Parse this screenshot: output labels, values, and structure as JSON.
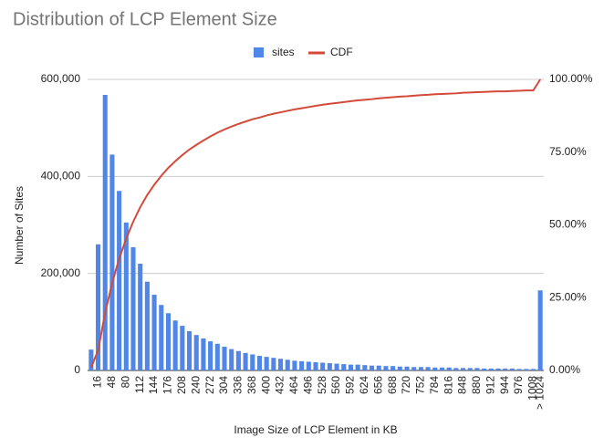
{
  "chart_data": {
    "type": "bar-line",
    "title": "Distribution of LCP Element Size",
    "x_label": "Image Size of LCP Element in KB",
    "y_label": "Number of Sites",
    "categories": [
      null,
      "16",
      null,
      "48",
      null,
      "80",
      null,
      "112",
      null,
      "144",
      null,
      "176",
      null,
      "208",
      null,
      "240",
      null,
      "272",
      null,
      "304",
      null,
      "336",
      null,
      "368",
      null,
      "400",
      null,
      "432",
      null,
      "464",
      null,
      "496",
      null,
      "528",
      null,
      "560",
      null,
      "592",
      null,
      "624",
      null,
      "656",
      null,
      "688",
      null,
      "720",
      null,
      "752",
      null,
      "784",
      null,
      "816",
      null,
      "848",
      null,
      "880",
      null,
      "912",
      null,
      "944",
      null,
      "976",
      null,
      "1008",
      "> 1024"
    ],
    "series": [
      {
        "name": "sites",
        "color": "#4f86e8",
        "kind": "bar",
        "values": [
          43000,
          260000,
          568000,
          445000,
          370000,
          305000,
          254000,
          220000,
          183000,
          156000,
          135000,
          118000,
          103000,
          92000,
          81000,
          73000,
          66000,
          60000,
          55000,
          49000,
          44000,
          40000,
          36000,
          33000,
          30000,
          28000,
          26000,
          24000,
          22000,
          20000,
          19000,
          18000,
          17000,
          16000,
          15000,
          14000,
          13000,
          12000,
          12000,
          11000,
          10000,
          10000,
          9000,
          9000,
          8000,
          8000,
          7000,
          7000,
          7000,
          6000,
          6000,
          6000,
          5000,
          5000,
          5000,
          5000,
          4000,
          4000,
          4000,
          4000,
          4000,
          3000,
          3000,
          3000,
          165000
        ]
      },
      {
        "name": "CDF",
        "color": "#d44a3a",
        "kind": "line",
        "axis": "y2",
        "values": [
          1.0,
          6.9,
          19.8,
          30.0,
          38.4,
          45.3,
          51.1,
          56.1,
          60.3,
          63.8,
          66.9,
          69.6,
          71.9,
          74.0,
          75.9,
          77.5,
          79.0,
          80.4,
          81.7,
          82.8,
          83.8,
          84.7,
          85.5,
          86.3,
          86.9,
          87.6,
          88.2,
          88.7,
          89.2,
          89.7,
          90.1,
          90.5,
          90.9,
          91.3,
          91.6,
          91.9,
          92.2,
          92.5,
          92.8,
          93.0,
          93.2,
          93.5,
          93.7,
          93.9,
          94.1,
          94.2,
          94.4,
          94.6,
          94.7,
          94.9,
          95.0,
          95.1,
          95.2,
          95.4,
          95.5,
          95.6,
          95.7,
          95.8,
          95.9,
          95.9,
          96.0,
          96.1,
          96.2,
          96.2,
          100.0
        ]
      }
    ],
    "ylim": [
      0,
      600000
    ],
    "yticks": [
      0,
      {
        "value": 200000,
        "label": "200,000"
      },
      {
        "value": 400000,
        "label": "400,000"
      },
      {
        "value": 600000,
        "label": "600,000"
      }
    ],
    "y2lim": [
      0,
      100
    ],
    "y2ticks": [
      {
        "value": 0,
        "label": "0.00%"
      },
      {
        "value": 25,
        "label": "25.00%"
      },
      {
        "value": 50,
        "label": "50.00%"
      },
      {
        "value": 75,
        "label": "75.00%"
      },
      {
        "value": 100,
        "label": "100.00%"
      }
    ],
    "grid": true,
    "legend": "top"
  }
}
